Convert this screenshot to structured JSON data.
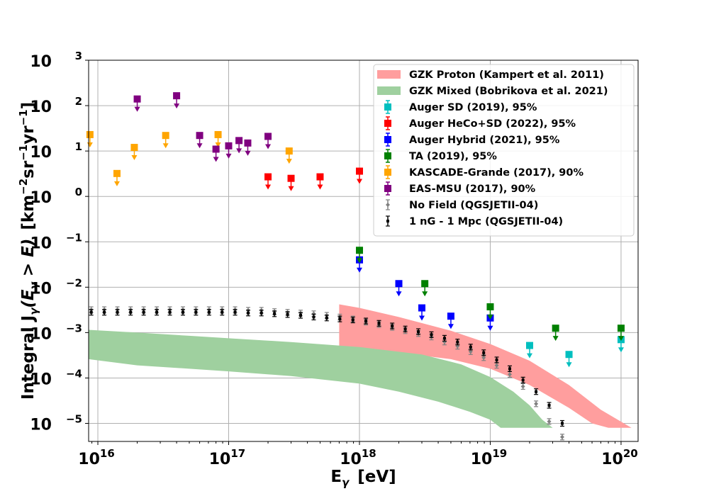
{
  "chart_data": {
    "type": "scatter",
    "xlabel_main": "E",
    "xlabel_sub": "γ",
    "xlabel_unit": "[eV]",
    "ylabel_main": "Integral J",
    "ylabel_sub": "γ",
    "ylabel_arg": "(E",
    "ylabel_arg_sub": "γ",
    "ylabel_arg_end": " > E)",
    "ylabel_unit": "[km",
    "ylabel_exp1": "−2",
    "ylabel_sr": "sr",
    "ylabel_exp2": "−1",
    "ylabel_yr": "yr",
    "ylabel_exp3": "−1",
    "ylabel_close": "]",
    "x_scale": "log",
    "y_scale": "log",
    "xlim": [
      8500000000000000.0,
      1.35e+20
    ],
    "ylim": [
      4e-06,
      1000
    ],
    "grid": true,
    "legend_position": "top-right",
    "x_ticks": [
      {
        "value": 1e+16,
        "base": "10",
        "exp": "16"
      },
      {
        "value": 1e+17,
        "base": "10",
        "exp": "17"
      },
      {
        "value": 1e+18,
        "base": "10",
        "exp": "18"
      },
      {
        "value": 1e+19,
        "base": "10",
        "exp": "19"
      },
      {
        "value": 1e+20,
        "base": "10",
        "exp": "20"
      }
    ],
    "y_ticks": [
      {
        "value": 1e-05,
        "base": "10",
        "exp": "−5"
      },
      {
        "value": 0.0001,
        "base": "10",
        "exp": "−4"
      },
      {
        "value": 0.001,
        "base": "10",
        "exp": "−3"
      },
      {
        "value": 0.01,
        "base": "10",
        "exp": "−2"
      },
      {
        "value": 0.1,
        "base": "10",
        "exp": "−1"
      },
      {
        "value": 1,
        "base": "10",
        "exp": "0"
      },
      {
        "value": 10,
        "base": "10",
        "exp": "1"
      },
      {
        "value": 100,
        "base": "10",
        "exp": "2"
      },
      {
        "value": 1000,
        "base": "10",
        "exp": "3"
      }
    ],
    "bands": [
      {
        "name": "GZK Proton (Kampert et al. 2011)",
        "color": "#ff9e9e",
        "upper": [
          [
            7e+17,
            0.0042
          ],
          [
            1e+18,
            0.0035
          ],
          [
            2e+18,
            0.0022
          ],
          [
            5e+18,
            0.0011
          ],
          [
            1e+19,
            0.00056
          ],
          [
            2e+19,
            0.00024
          ],
          [
            4e+19,
            7e-05
          ],
          [
            7e+19,
            2e-05
          ],
          [
            1.2e+20,
            8e-06
          ]
        ],
        "lower": [
          [
            7e+17,
            0.0004
          ],
          [
            1e+18,
            0.0004
          ],
          [
            2e+18,
            0.00036
          ],
          [
            5e+18,
            0.00026
          ],
          [
            1e+19,
            0.00016
          ],
          [
            2e+19,
            7e-05
          ],
          [
            4e+19,
            2.2e-05
          ],
          [
            6e+19,
            1e-05
          ],
          [
            8e+19,
            8e-06
          ]
        ]
      },
      {
        "name": "GZK Mixed (Bobrikova et al. 2021)",
        "color": "#9fd09f",
        "upper": [
          [
            8500000000000000.0,
            0.00115
          ],
          [
            2e+16,
            0.001
          ],
          [
            5e+16,
            0.00085
          ],
          [
            1e+17,
            0.00075
          ],
          [
            3e+17,
            0.00062
          ],
          [
            1e+18,
            0.00048
          ],
          [
            3e+18,
            0.00033
          ],
          [
            6e+18,
            0.0002
          ],
          [
            1e+19,
            0.000105
          ],
          [
            1.5e+19,
            5e-05
          ],
          [
            2e+19,
            2.5e-05
          ],
          [
            2.5e+19,
            1.2e-05
          ],
          [
            3e+19,
            8e-06
          ]
        ],
        "lower": [
          [
            8500000000000000.0,
            0.00026
          ],
          [
            2e+16,
            0.00019
          ],
          [
            5e+16,
            0.00016
          ],
          [
            1e+17,
            0.00014
          ],
          [
            3e+17,
            0.00011
          ],
          [
            1e+18,
            7.5e-05
          ],
          [
            2e+18,
            5e-05
          ],
          [
            4e+18,
            3e-05
          ],
          [
            7e+18,
            1.8e-05
          ],
          [
            1e+19,
            1.2e-05
          ],
          [
            1.2e+19,
            8e-06
          ],
          [
            3e+19,
            8e-06
          ]
        ]
      }
    ],
    "series": [
      {
        "name": "Auger SD (2019), 95%",
        "color": "#00bfbf",
        "kind": "limit",
        "points": [
          [
            2e+19,
            0.00052
          ],
          [
            4e+19,
            0.00033
          ],
          [
            1e+20,
            0.0007
          ]
        ]
      },
      {
        "name": "Auger HeCo+SD (2022), 95%",
        "color": "#ff0000",
        "kind": "limit",
        "points": [
          [
            2e+17,
            2.7
          ],
          [
            3e+17,
            2.5
          ],
          [
            5e+17,
            2.7
          ],
          [
            1e+18,
            3.6
          ]
        ]
      },
      {
        "name": "Auger Hybrid (2021), 95%",
        "color": "#0000ff",
        "kind": "limit",
        "points": [
          [
            1e+18,
            0.04
          ],
          [
            2e+18,
            0.012
          ],
          [
            3e+18,
            0.0035
          ],
          [
            5e+18,
            0.0023
          ],
          [
            1e+19,
            0.0021
          ]
        ]
      },
      {
        "name": "TA (2019), 95%",
        "color": "#008000",
        "kind": "limit",
        "points": [
          [
            1e+18,
            0.065
          ],
          [
            3.16e+18,
            0.012
          ],
          [
            1e+19,
            0.0037
          ],
          [
            3.16e+19,
            0.00125
          ],
          [
            1e+20,
            0.00125
          ]
        ]
      },
      {
        "name": "KASCADE-Grande (2017), 90%",
        "color": "#ffa500",
        "kind": "limit",
        "points": [
          [
            8700000000000000.0,
            23
          ],
          [
            1.4e+16,
            3.2
          ],
          [
            1.9e+16,
            12
          ],
          [
            3.3e+16,
            22
          ],
          [
            8.3e+16,
            23
          ],
          [
            2.9e+17,
            10
          ]
        ]
      },
      {
        "name": "EAS-MSU (2017), 90%",
        "color": "#800080",
        "kind": "limit",
        "points": [
          [
            2e+16,
            140
          ],
          [
            4e+16,
            165
          ],
          [
            6e+16,
            22
          ],
          [
            8e+16,
            11
          ],
          [
            1e+17,
            13
          ],
          [
            1.2e+17,
            17
          ],
          [
            1.4e+17,
            15
          ],
          [
            2e+17,
            21
          ]
        ]
      },
      {
        "name": "No Field (QGSJETII-04)",
        "color": "#808080",
        "kind": "errorbar",
        "marker": "diamond",
        "points": [
          [
            8900000000000000.0,
            0.0032
          ],
          [
            1.12e+16,
            0.0032
          ],
          [
            1.41e+16,
            0.0032
          ],
          [
            1.78e+16,
            0.0032
          ],
          [
            2.24e+16,
            0.0032
          ],
          [
            2.82e+16,
            0.0032
          ],
          [
            3.55e+16,
            0.0032
          ],
          [
            4.47e+16,
            0.0032
          ],
          [
            5.62e+16,
            0.0032
          ],
          [
            7.08e+16,
            0.0032
          ],
          [
            8.91e+16,
            0.0032
          ],
          [
            1.12e+17,
            0.0032
          ],
          [
            1.41e+17,
            0.0031
          ],
          [
            1.78e+17,
            0.0031
          ],
          [
            2.24e+17,
            0.0029
          ],
          [
            2.82e+17,
            0.0028
          ],
          [
            3.55e+17,
            0.0027
          ],
          [
            4.47e+17,
            0.0026
          ],
          [
            5.62e+17,
            0.0024
          ],
          [
            7.08e+17,
            0.0022
          ],
          [
            8.91e+17,
            0.002
          ],
          [
            1.12e+18,
            0.0017
          ],
          [
            1.41e+18,
            0.0015
          ],
          [
            1.78e+18,
            0.0013
          ],
          [
            2.24e+18,
            0.0011
          ],
          [
            2.82e+18,
            0.00095
          ],
          [
            3.55e+18,
            0.0008
          ],
          [
            4.47e+18,
            0.00062
          ],
          [
            5.62e+18,
            0.0005
          ],
          [
            7.08e+18,
            0.00038
          ],
          [
            8.91e+18,
            0.00028
          ],
          [
            1.12e+19,
            0.00019
          ],
          [
            1.41e+19,
            0.00012
          ],
          [
            1.78e+19,
            6.5e-05
          ],
          [
            2.24e+19,
            2.7e-05
          ],
          [
            2.82e+19,
            1.1e-05
          ],
          [
            3.55e+19,
            5e-06
          ]
        ]
      },
      {
        "name": "1 nG - 1 Mpc (QGSJETII-04)",
        "color": "#000000",
        "kind": "errorbar",
        "marker": "square",
        "points": [
          [
            8900000000000000.0,
            0.0028
          ],
          [
            1.12e+16,
            0.0028
          ],
          [
            1.41e+16,
            0.0028
          ],
          [
            1.78e+16,
            0.0028
          ],
          [
            2.24e+16,
            0.0028
          ],
          [
            2.82e+16,
            0.0028
          ],
          [
            3.55e+16,
            0.0028
          ],
          [
            4.47e+16,
            0.0028
          ],
          [
            5.62e+16,
            0.0028
          ],
          [
            7.08e+16,
            0.0028
          ],
          [
            8.91e+16,
            0.0028
          ],
          [
            1.12e+17,
            0.0028
          ],
          [
            1.41e+17,
            0.0027
          ],
          [
            1.78e+17,
            0.0027
          ],
          [
            2.24e+17,
            0.0026
          ],
          [
            2.82e+17,
            0.0025
          ],
          [
            3.55e+17,
            0.0024
          ],
          [
            4.47e+17,
            0.0022
          ],
          [
            5.62e+17,
            0.0021
          ],
          [
            7.08e+17,
            0.002
          ],
          [
            8.91e+17,
            0.0019
          ],
          [
            1.12e+18,
            0.0018
          ],
          [
            1.41e+18,
            0.0016
          ],
          [
            1.78e+18,
            0.0014
          ],
          [
            2.24e+18,
            0.0012
          ],
          [
            2.82e+18,
            0.00105
          ],
          [
            3.55e+18,
            0.0009
          ],
          [
            4.47e+18,
            0.00075
          ],
          [
            5.62e+18,
            0.00062
          ],
          [
            7.08e+18,
            0.00048
          ],
          [
            8.91e+18,
            0.00036
          ],
          [
            1.12e+19,
            0.00025
          ],
          [
            1.41e+19,
            0.00016
          ],
          [
            1.78e+19,
            9e-05
          ],
          [
            2.24e+19,
            5e-05
          ],
          [
            2.82e+19,
            2.5e-05
          ],
          [
            3.55e+19,
            1e-05
          ]
        ]
      }
    ]
  }
}
